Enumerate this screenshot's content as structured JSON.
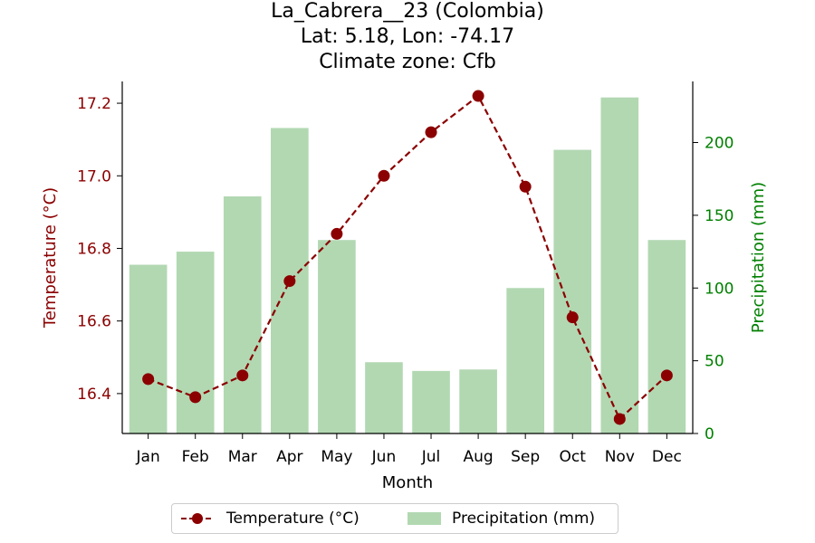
{
  "title": {
    "line1": "La_Cabrera__23 (Colombia)",
    "line2": "Lat: 5.18, Lon: -74.17",
    "line3": "Climate zone: Cfb"
  },
  "colors": {
    "temperature": "#8b0000",
    "precipitation": "#008000",
    "bars": "#b2d8b2"
  },
  "chart_data": {
    "type": "bar+line",
    "title": "La_Cabrera__23 (Colombia)\nLat: 5.18, Lon: -74.17\nClimate zone: Cfb",
    "xlabel": "Month",
    "ylabel_left": "Temperature (°C)",
    "ylabel_right": "Precipitation (mm)",
    "categories": [
      "Jan",
      "Feb",
      "Mar",
      "Apr",
      "May",
      "Jun",
      "Jul",
      "Aug",
      "Sep",
      "Oct",
      "Nov",
      "Dec"
    ],
    "series": [
      {
        "name": "Temperature (°C)",
        "type": "line",
        "axis": "left",
        "values": [
          16.44,
          16.39,
          16.45,
          16.71,
          16.84,
          17.0,
          17.12,
          17.22,
          16.97,
          16.61,
          16.33,
          16.45
        ]
      },
      {
        "name": "Precipitation (mm)",
        "type": "bar",
        "axis": "right",
        "values": [
          116,
          125,
          163,
          210,
          133,
          49,
          43,
          44,
          100,
          195,
          231,
          133
        ]
      }
    ],
    "ylim_left": [
      16.29,
      17.26
    ],
    "ylim_right": [
      0,
      242
    ],
    "yticks_left": [
      "16.4",
      "16.6",
      "16.8",
      "17.0",
      "17.2"
    ],
    "yticks_right": [
      "0",
      "50",
      "100",
      "150",
      "200"
    ],
    "legend": {
      "position": "bottom-center",
      "entries": [
        "Temperature (°C)",
        "Precipitation (mm)"
      ]
    },
    "grid": false
  }
}
